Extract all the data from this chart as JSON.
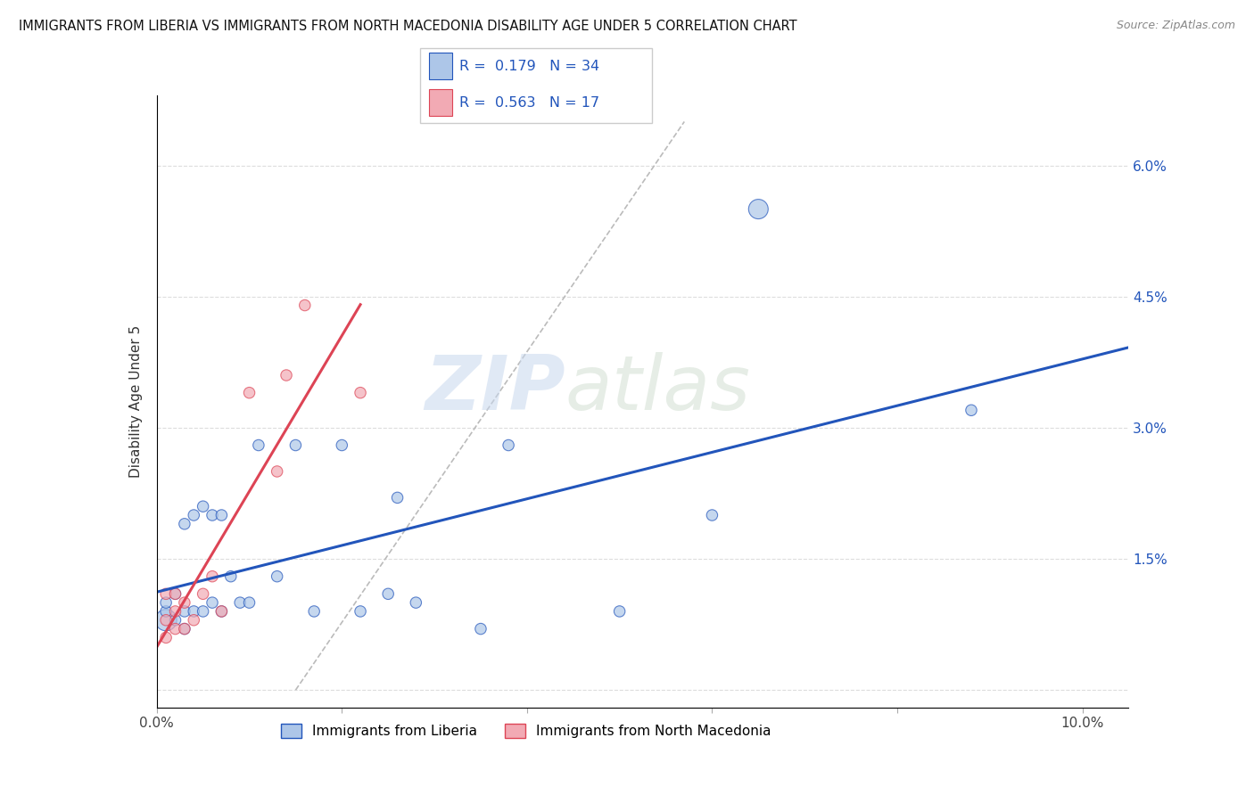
{
  "title": "IMMIGRANTS FROM LIBERIA VS IMMIGRANTS FROM NORTH MACEDONIA DISABILITY AGE UNDER 5 CORRELATION CHART",
  "source": "Source: ZipAtlas.com",
  "ylabel": "Disability Age Under 5",
  "xlim": [
    0.0,
    0.105
  ],
  "ylim": [
    -0.002,
    0.068
  ],
  "xticks": [
    0.0,
    0.02,
    0.04,
    0.06,
    0.08,
    0.1
  ],
  "xticklabels": [
    "0.0%",
    "",
    "",
    "",
    "",
    "10.0%"
  ],
  "yticks": [
    0.0,
    0.015,
    0.03,
    0.045,
    0.06
  ],
  "yticklabels": [
    "",
    "1.5%",
    "3.0%",
    "4.5%",
    "6.0%"
  ],
  "liberia_x": [
    0.001,
    0.001,
    0.001,
    0.002,
    0.002,
    0.003,
    0.003,
    0.003,
    0.004,
    0.004,
    0.005,
    0.005,
    0.006,
    0.006,
    0.007,
    0.007,
    0.008,
    0.009,
    0.01,
    0.011,
    0.013,
    0.015,
    0.017,
    0.02,
    0.022,
    0.025,
    0.026,
    0.028,
    0.035,
    0.038,
    0.05,
    0.06,
    0.065,
    0.088
  ],
  "liberia_y": [
    0.008,
    0.009,
    0.01,
    0.008,
    0.011,
    0.007,
    0.009,
    0.019,
    0.009,
    0.02,
    0.009,
    0.021,
    0.01,
    0.02,
    0.009,
    0.02,
    0.013,
    0.01,
    0.01,
    0.028,
    0.013,
    0.028,
    0.009,
    0.028,
    0.009,
    0.011,
    0.022,
    0.01,
    0.007,
    0.028,
    0.009,
    0.02,
    0.055,
    0.032
  ],
  "liberia_sizes": [
    300,
    80,
    80,
    80,
    80,
    80,
    80,
    80,
    80,
    80,
    80,
    80,
    80,
    80,
    80,
    80,
    80,
    80,
    80,
    80,
    80,
    80,
    80,
    80,
    80,
    80,
    80,
    80,
    80,
    80,
    80,
    80,
    250,
    80
  ],
  "macedonia_x": [
    0.001,
    0.001,
    0.001,
    0.002,
    0.002,
    0.002,
    0.003,
    0.003,
    0.004,
    0.005,
    0.006,
    0.007,
    0.01,
    0.013,
    0.014,
    0.016,
    0.022
  ],
  "macedonia_y": [
    0.006,
    0.008,
    0.011,
    0.007,
    0.009,
    0.011,
    0.007,
    0.01,
    0.008,
    0.011,
    0.013,
    0.009,
    0.034,
    0.025,
    0.036,
    0.044,
    0.034
  ],
  "macedonia_sizes": [
    80,
    80,
    80,
    80,
    80,
    80,
    80,
    80,
    80,
    80,
    80,
    80,
    80,
    80,
    80,
    80,
    80
  ],
  "liberia_color": "#adc6e8",
  "macedonia_color": "#f2aab4",
  "liberia_line_color": "#2255bb",
  "macedonia_line_color": "#dd4455",
  "r_liberia": "0.179",
  "n_liberia": "34",
  "r_macedonia": "0.563",
  "n_macedonia": "17",
  "watermark_zip": "ZIP",
  "watermark_atlas": "atlas",
  "legend_liberia": "Immigrants from Liberia",
  "legend_macedonia": "Immigrants from North Macedonia"
}
